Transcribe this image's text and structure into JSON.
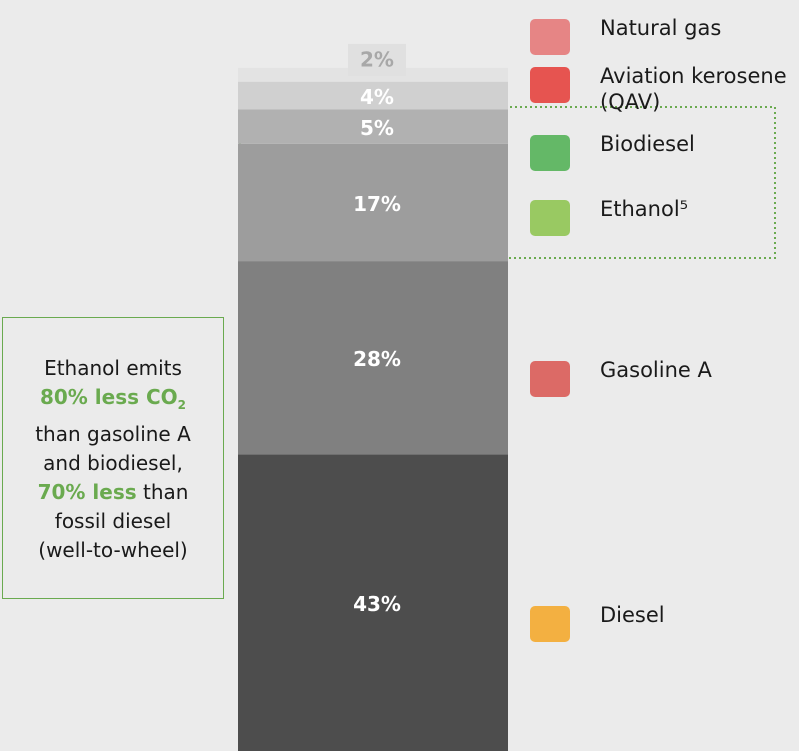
{
  "chart_data": {
    "type": "bar",
    "stacked": true,
    "series": [
      {
        "name": "Diesel",
        "color": "#4d4d4d",
        "values": [
          43
        ],
        "value_labels": [
          "43%"
        ]
      },
      {
        "name": "Gasoline A",
        "color": "#808080",
        "values": [
          28
        ],
        "value_labels": [
          "28%"
        ]
      },
      {
        "name": "Ethanol⁵",
        "color": "#9d9d9d",
        "values": [
          17
        ],
        "value_labels": [
          "17%"
        ]
      },
      {
        "name": "Biodiesel",
        "color": "#b1b1b1",
        "values": [
          5
        ],
        "value_labels": [
          "5%"
        ]
      },
      {
        "name": "Aviation kerosene (QAV)",
        "color": "#d0d0d0",
        "values": [
          4
        ],
        "value_labels": [
          "4%"
        ]
      },
      {
        "name": "Natural gas",
        "color": "#e3e3e3",
        "values": [
          2
        ],
        "value_labels": [
          "2%"
        ]
      }
    ],
    "annotation": {
      "line1": "Ethanol emits",
      "highlight1": "80% less CO",
      "subscript": "2",
      "line2": "than gasoline A",
      "line3": "and biodiesel,",
      "highlight2": "70% less",
      "line4": "than",
      "line5": "fossil diesel",
      "line6": "(well-to-wheel)"
    }
  }
}
